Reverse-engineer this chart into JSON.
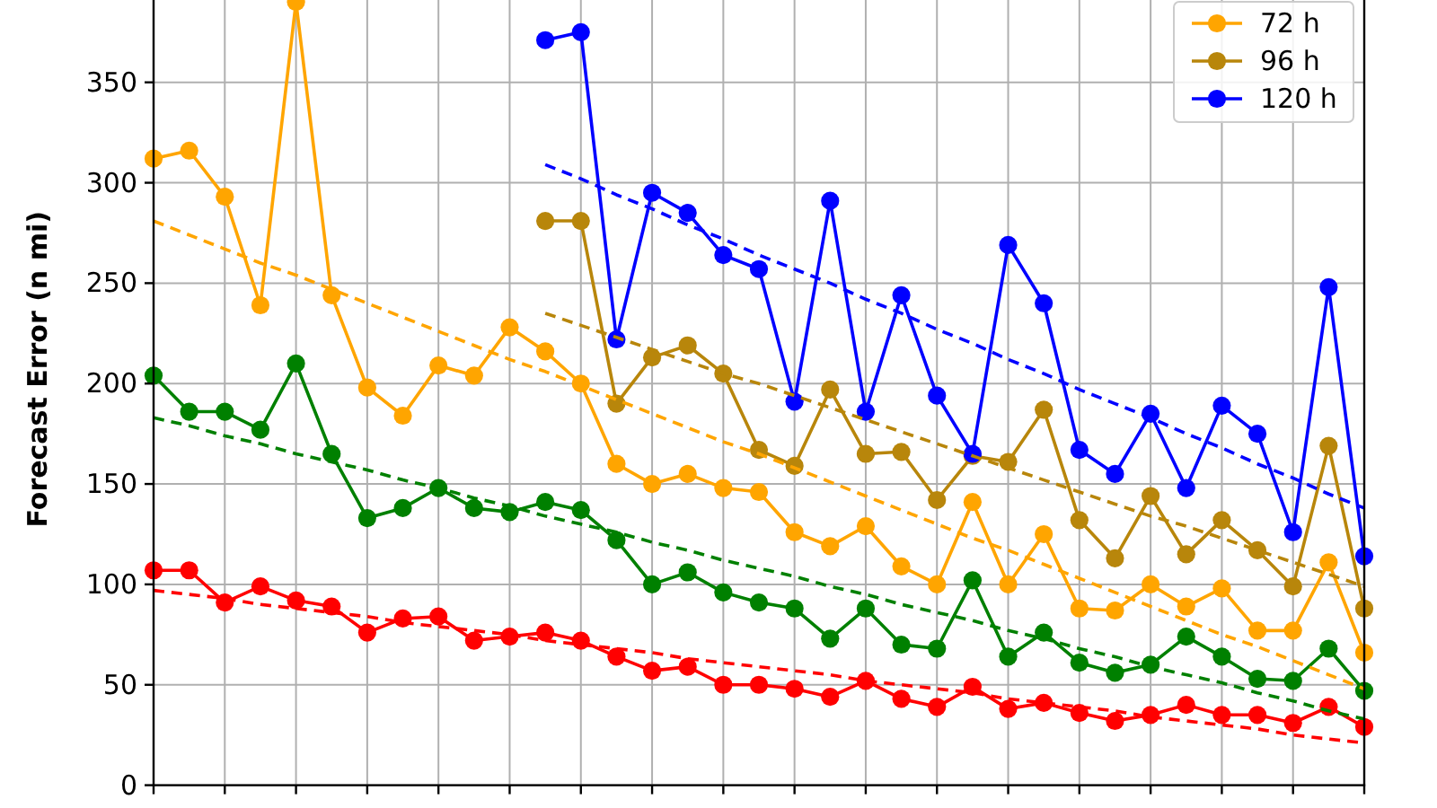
{
  "chart_data": {
    "type": "line",
    "ylabel": "Forecast Error (n mi)",
    "categories": [
      null,
      null,
      null,
      null,
      null,
      null,
      null,
      null,
      null,
      null,
      null,
      null,
      null,
      null,
      null,
      null,
      null,
      null,
      null,
      null,
      null,
      null,
      null,
      null,
      null,
      null,
      null,
      null,
      null,
      null,
      null,
      null,
      null,
      null,
      null
    ],
    "series": [
      {
        "color": "#ff0000",
        "values": [
          107,
          107,
          91,
          99,
          92,
          89,
          76,
          83,
          84,
          72,
          74,
          76,
          72,
          64,
          57,
          59,
          50,
          50,
          48,
          44,
          52,
          43,
          39,
          49,
          38,
          41,
          36,
          32,
          35,
          40,
          35,
          35,
          31,
          39,
          29
        ]
      },
      {
        "color": "#008000",
        "values": [
          204,
          186,
          186,
          177,
          210,
          165,
          133,
          138,
          148,
          138,
          136,
          141,
          137,
          122,
          100,
          106,
          96,
          91,
          88,
          73,
          88,
          70,
          68,
          102,
          64,
          76,
          61,
          56,
          60,
          74,
          64,
          53,
          52,
          68,
          47
        ]
      },
      {
        "name": "72 h",
        "color": "#ffa500",
        "values": [
          312,
          316,
          293,
          239,
          390,
          244,
          198,
          184,
          209,
          204,
          228,
          216,
          200,
          160,
          150,
          155,
          148,
          146,
          126,
          119,
          129,
          109,
          100,
          141,
          100,
          125,
          88,
          87,
          100,
          89,
          98,
          77,
          77,
          111,
          66
        ]
      },
      {
        "name": "96 h",
        "color": "#b8860b",
        "values": [
          null,
          null,
          null,
          null,
          null,
          null,
          null,
          null,
          null,
          null,
          null,
          281,
          281,
          190,
          213,
          219,
          205,
          167,
          159,
          197,
          165,
          166,
          142,
          164,
          161,
          187,
          132,
          113,
          144,
          115,
          132,
          117,
          99,
          169,
          88
        ]
      },
      {
        "name": "120 h",
        "color": "#0000ff",
        "values": [
          null,
          null,
          null,
          null,
          null,
          null,
          null,
          null,
          null,
          null,
          null,
          371,
          375,
          222,
          295,
          285,
          264,
          257,
          191,
          291,
          186,
          244,
          194,
          165,
          269,
          240,
          167,
          155,
          185,
          148,
          189,
          175,
          126,
          248,
          114
        ]
      },
      {
        "color": "#ff0000",
        "line_style": "dashed",
        "marker": "none",
        "values": [
          97,
          95,
          93,
          90,
          88,
          86,
          84,
          81,
          79,
          77,
          75,
          72,
          70,
          68,
          66,
          63,
          61,
          59,
          57,
          55,
          52,
          50,
          48,
          46,
          43,
          41,
          39,
          37,
          34,
          32,
          30,
          28,
          25,
          23,
          21
        ]
      },
      {
        "color": "#008000",
        "line_style": "dashed",
        "marker": "none",
        "values": [
          183,
          179,
          174,
          170,
          165,
          161,
          157,
          152,
          148,
          143,
          139,
          134,
          130,
          126,
          121,
          117,
          112,
          108,
          104,
          99,
          95,
          90,
          86,
          82,
          77,
          73,
          68,
          64,
          59,
          55,
          51,
          46,
          42,
          37,
          33
        ]
      },
      {
        "color": "#ffa500",
        "line_style": "dashed",
        "marker": "none",
        "values": [
          281,
          274,
          267,
          260,
          254,
          247,
          240,
          233,
          226,
          219,
          212,
          206,
          199,
          192,
          185,
          178,
          171,
          165,
          158,
          151,
          144,
          137,
          130,
          123,
          117,
          110,
          103,
          96,
          89,
          82,
          75,
          69,
          62,
          55,
          48
        ]
      },
      {
        "color": "#b8860b",
        "line_style": "dashed",
        "marker": "none",
        "values": [
          null,
          null,
          null,
          null,
          null,
          null,
          null,
          null,
          null,
          null,
          null,
          235,
          229,
          223,
          217,
          211,
          205,
          200,
          194,
          188,
          182,
          176,
          170,
          164,
          158,
          152,
          146,
          140,
          134,
          129,
          123,
          117,
          111,
          105,
          99
        ]
      },
      {
        "color": "#0000ff",
        "line_style": "dashed",
        "marker": "none",
        "values": [
          null,
          null,
          null,
          null,
          null,
          null,
          null,
          null,
          null,
          null,
          null,
          309,
          302,
          294,
          287,
          279,
          272,
          264,
          257,
          250,
          242,
          235,
          227,
          220,
          212,
          205,
          197,
          190,
          183,
          175,
          168,
          160,
          153,
          145,
          138
        ]
      }
    ],
    "ylim": [
      0,
      391
    ],
    "yticks": [
      0,
      50,
      100,
      150,
      200,
      250,
      300,
      350
    ],
    "grid": true,
    "legend": "top right",
    "marker": "circle",
    "line_style": "solid",
    "tick_labels": "y"
  }
}
